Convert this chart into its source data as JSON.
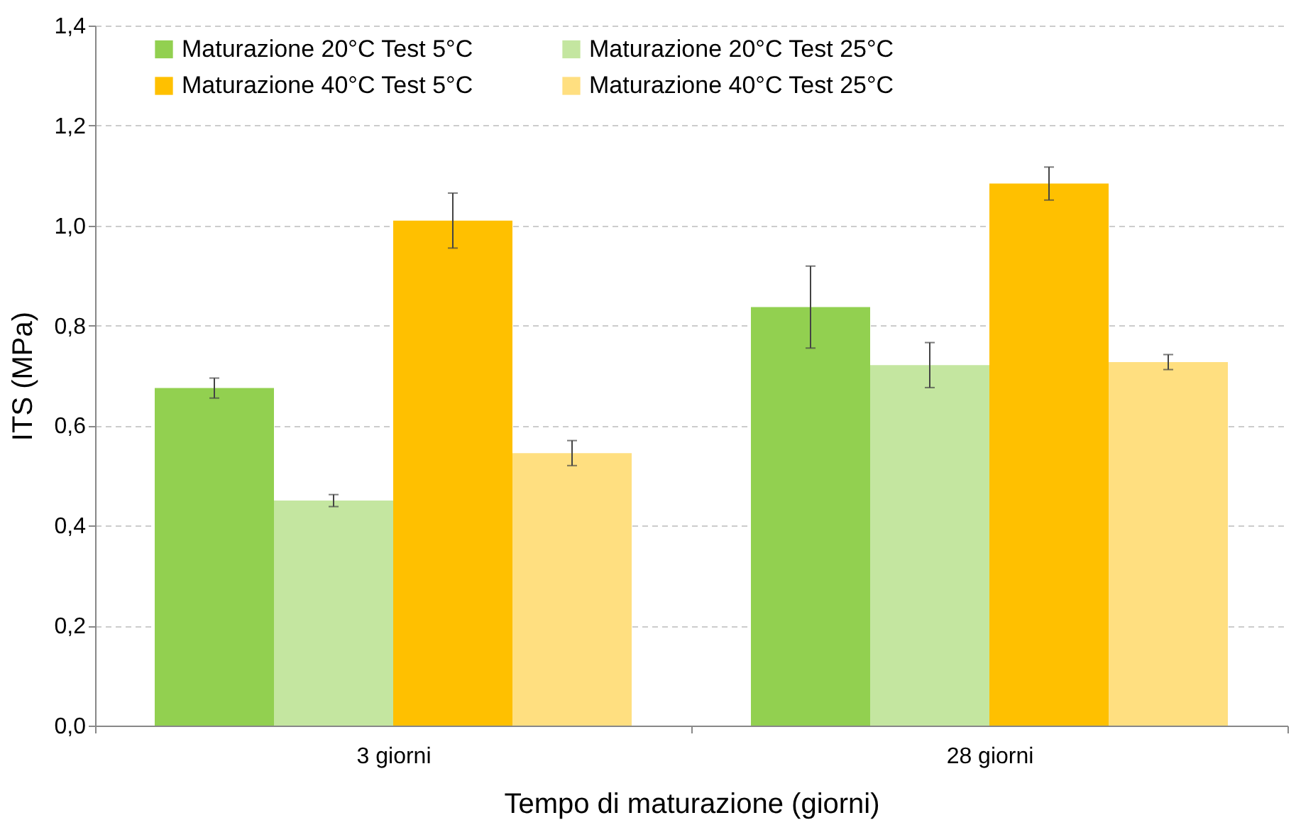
{
  "chart_data": {
    "type": "bar",
    "xlabel": "Tempo di maturazione (giorni)",
    "ylabel": "ITS (MPa)",
    "categories": [
      "3 giorni",
      "28 giorni"
    ],
    "series": [
      {
        "name": "Maturazione 20°C Test 5°C",
        "color": "#92d050",
        "values": [
          0.675,
          0.837
        ],
        "errors": [
          0.02,
          0.082
        ]
      },
      {
        "name": "Maturazione 20°C Test 25°C",
        "color": "#c4e6a0",
        "values": [
          0.45,
          0.721
        ],
        "errors": [
          0.012,
          0.045
        ]
      },
      {
        "name": "Maturazione 40°C Test 5°C",
        "color": "#ffc000",
        "values": [
          1.01,
          1.084
        ],
        "errors": [
          0.055,
          0.033
        ]
      },
      {
        "name": "Maturazione 40°C Test 25°C",
        "color": "#ffdf80",
        "values": [
          0.545,
          0.727
        ],
        "errors": [
          0.025,
          0.015
        ]
      }
    ],
    "ylim": [
      0,
      1.4
    ],
    "yticks": [
      {
        "value": 0,
        "label": "0,0"
      },
      {
        "value": 0.2,
        "label": "0,2"
      },
      {
        "value": 0.4,
        "label": "0,4"
      },
      {
        "value": 0.6,
        "label": "0,6"
      },
      {
        "value": 0.8,
        "label": "0,8"
      },
      {
        "value": 1.0,
        "label": "1,0"
      },
      {
        "value": 1.2,
        "label": "1,2"
      },
      {
        "value": 1.4,
        "label": "1,4"
      }
    ],
    "grid": "y",
    "legend": "top"
  }
}
